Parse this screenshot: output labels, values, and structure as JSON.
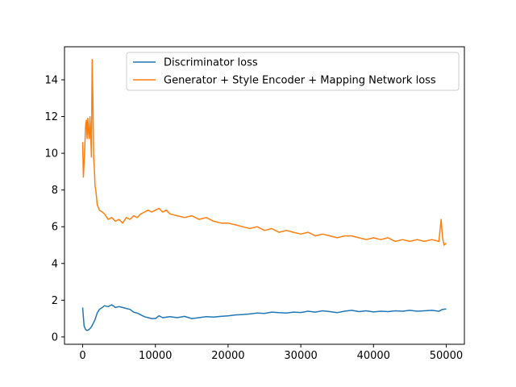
{
  "chart_data": {
    "type": "line",
    "title": "",
    "xlabel": "",
    "ylabel": "",
    "xlim": [
      -2500,
      52500
    ],
    "ylim": [
      -0.4,
      15.8
    ],
    "xticks": [
      0,
      10000,
      20000,
      30000,
      40000,
      50000
    ],
    "xtick_labels": [
      "0",
      "10000",
      "20000",
      "30000",
      "40000",
      "50000"
    ],
    "yticks": [
      0,
      2,
      4,
      6,
      8,
      10,
      12,
      14
    ],
    "ytick_labels": [
      "0",
      "2",
      "4",
      "6",
      "8",
      "10",
      "12",
      "14"
    ],
    "grid": false,
    "legend_position": "top-right",
    "series": [
      {
        "name": "Discriminator loss",
        "color": "#1f77b4",
        "x": [
          0,
          200,
          400,
          600,
          800,
          1000,
          1200,
          1400,
          1700,
          2000,
          2300,
          2700,
          3000,
          3500,
          4000,
          4500,
          5000,
          5500,
          6000,
          6500,
          7000,
          7500,
          8000,
          8500,
          9000,
          9500,
          10000,
          10500,
          11000,
          12000,
          13000,
          14000,
          15000,
          16000,
          17000,
          18000,
          19000,
          20000,
          21000,
          22000,
          23000,
          24000,
          25000,
          26000,
          27000,
          28000,
          29000,
          30000,
          31000,
          32000,
          33000,
          34000,
          35000,
          36000,
          37000,
          38000,
          39000,
          40000,
          41000,
          42000,
          43000,
          44000,
          45000,
          46000,
          47000,
          48000,
          49000,
          49500,
          50000
        ],
        "y": [
          1.6,
          0.6,
          0.4,
          0.35,
          0.38,
          0.45,
          0.55,
          0.7,
          0.95,
          1.3,
          1.5,
          1.6,
          1.7,
          1.65,
          1.75,
          1.6,
          1.65,
          1.6,
          1.55,
          1.5,
          1.35,
          1.3,
          1.2,
          1.1,
          1.05,
          1.0,
          1.0,
          1.15,
          1.05,
          1.1,
          1.05,
          1.12,
          1.0,
          1.05,
          1.1,
          1.08,
          1.12,
          1.15,
          1.2,
          1.22,
          1.25,
          1.3,
          1.28,
          1.35,
          1.32,
          1.3,
          1.35,
          1.33,
          1.4,
          1.35,
          1.42,
          1.38,
          1.32,
          1.4,
          1.45,
          1.38,
          1.42,
          1.36,
          1.4,
          1.38,
          1.42,
          1.4,
          1.45,
          1.4,
          1.42,
          1.45,
          1.4,
          1.5,
          1.52
        ]
      },
      {
        "name": "Generator + Style Encoder + Mapping Network loss",
        "color": "#ff7f0e",
        "x": [
          0,
          100,
          200,
          300,
          400,
          500,
          600,
          700,
          800,
          900,
          1000,
          1100,
          1200,
          1300,
          1400,
          1500,
          1600,
          1700,
          1800,
          2000,
          2300,
          2700,
          3000,
          3500,
          4000,
          4500,
          5000,
          5500,
          6000,
          6500,
          7000,
          7500,
          8000,
          8500,
          9000,
          9500,
          10000,
          10500,
          11000,
          11500,
          12000,
          13000,
          14000,
          15000,
          16000,
          17000,
          18000,
          19000,
          20000,
          21000,
          22000,
          23000,
          24000,
          25000,
          26000,
          27000,
          28000,
          29000,
          30000,
          31000,
          32000,
          33000,
          34000,
          35000,
          36000,
          37000,
          38000,
          39000,
          40000,
          41000,
          42000,
          43000,
          44000,
          45000,
          46000,
          47000,
          48000,
          49000,
          49300,
          49500,
          49700,
          50000
        ],
        "y": [
          10.6,
          8.7,
          9.5,
          10.5,
          11.5,
          11.8,
          10.8,
          11.9,
          11.2,
          10.8,
          12.0,
          11.0,
          9.8,
          15.1,
          13.0,
          9.8,
          9.2,
          8.2,
          8.0,
          7.2,
          6.9,
          6.8,
          6.7,
          6.4,
          6.5,
          6.3,
          6.4,
          6.2,
          6.5,
          6.4,
          6.6,
          6.5,
          6.7,
          6.8,
          6.9,
          6.8,
          6.9,
          7.0,
          6.8,
          6.9,
          6.7,
          6.6,
          6.5,
          6.6,
          6.4,
          6.5,
          6.3,
          6.2,
          6.2,
          6.1,
          6.0,
          5.9,
          6.0,
          5.8,
          5.9,
          5.7,
          5.8,
          5.7,
          5.6,
          5.7,
          5.5,
          5.6,
          5.5,
          5.4,
          5.5,
          5.5,
          5.4,
          5.3,
          5.4,
          5.3,
          5.4,
          5.2,
          5.3,
          5.2,
          5.3,
          5.2,
          5.3,
          5.2,
          6.4,
          5.4,
          5.0,
          5.1
        ]
      }
    ]
  }
}
